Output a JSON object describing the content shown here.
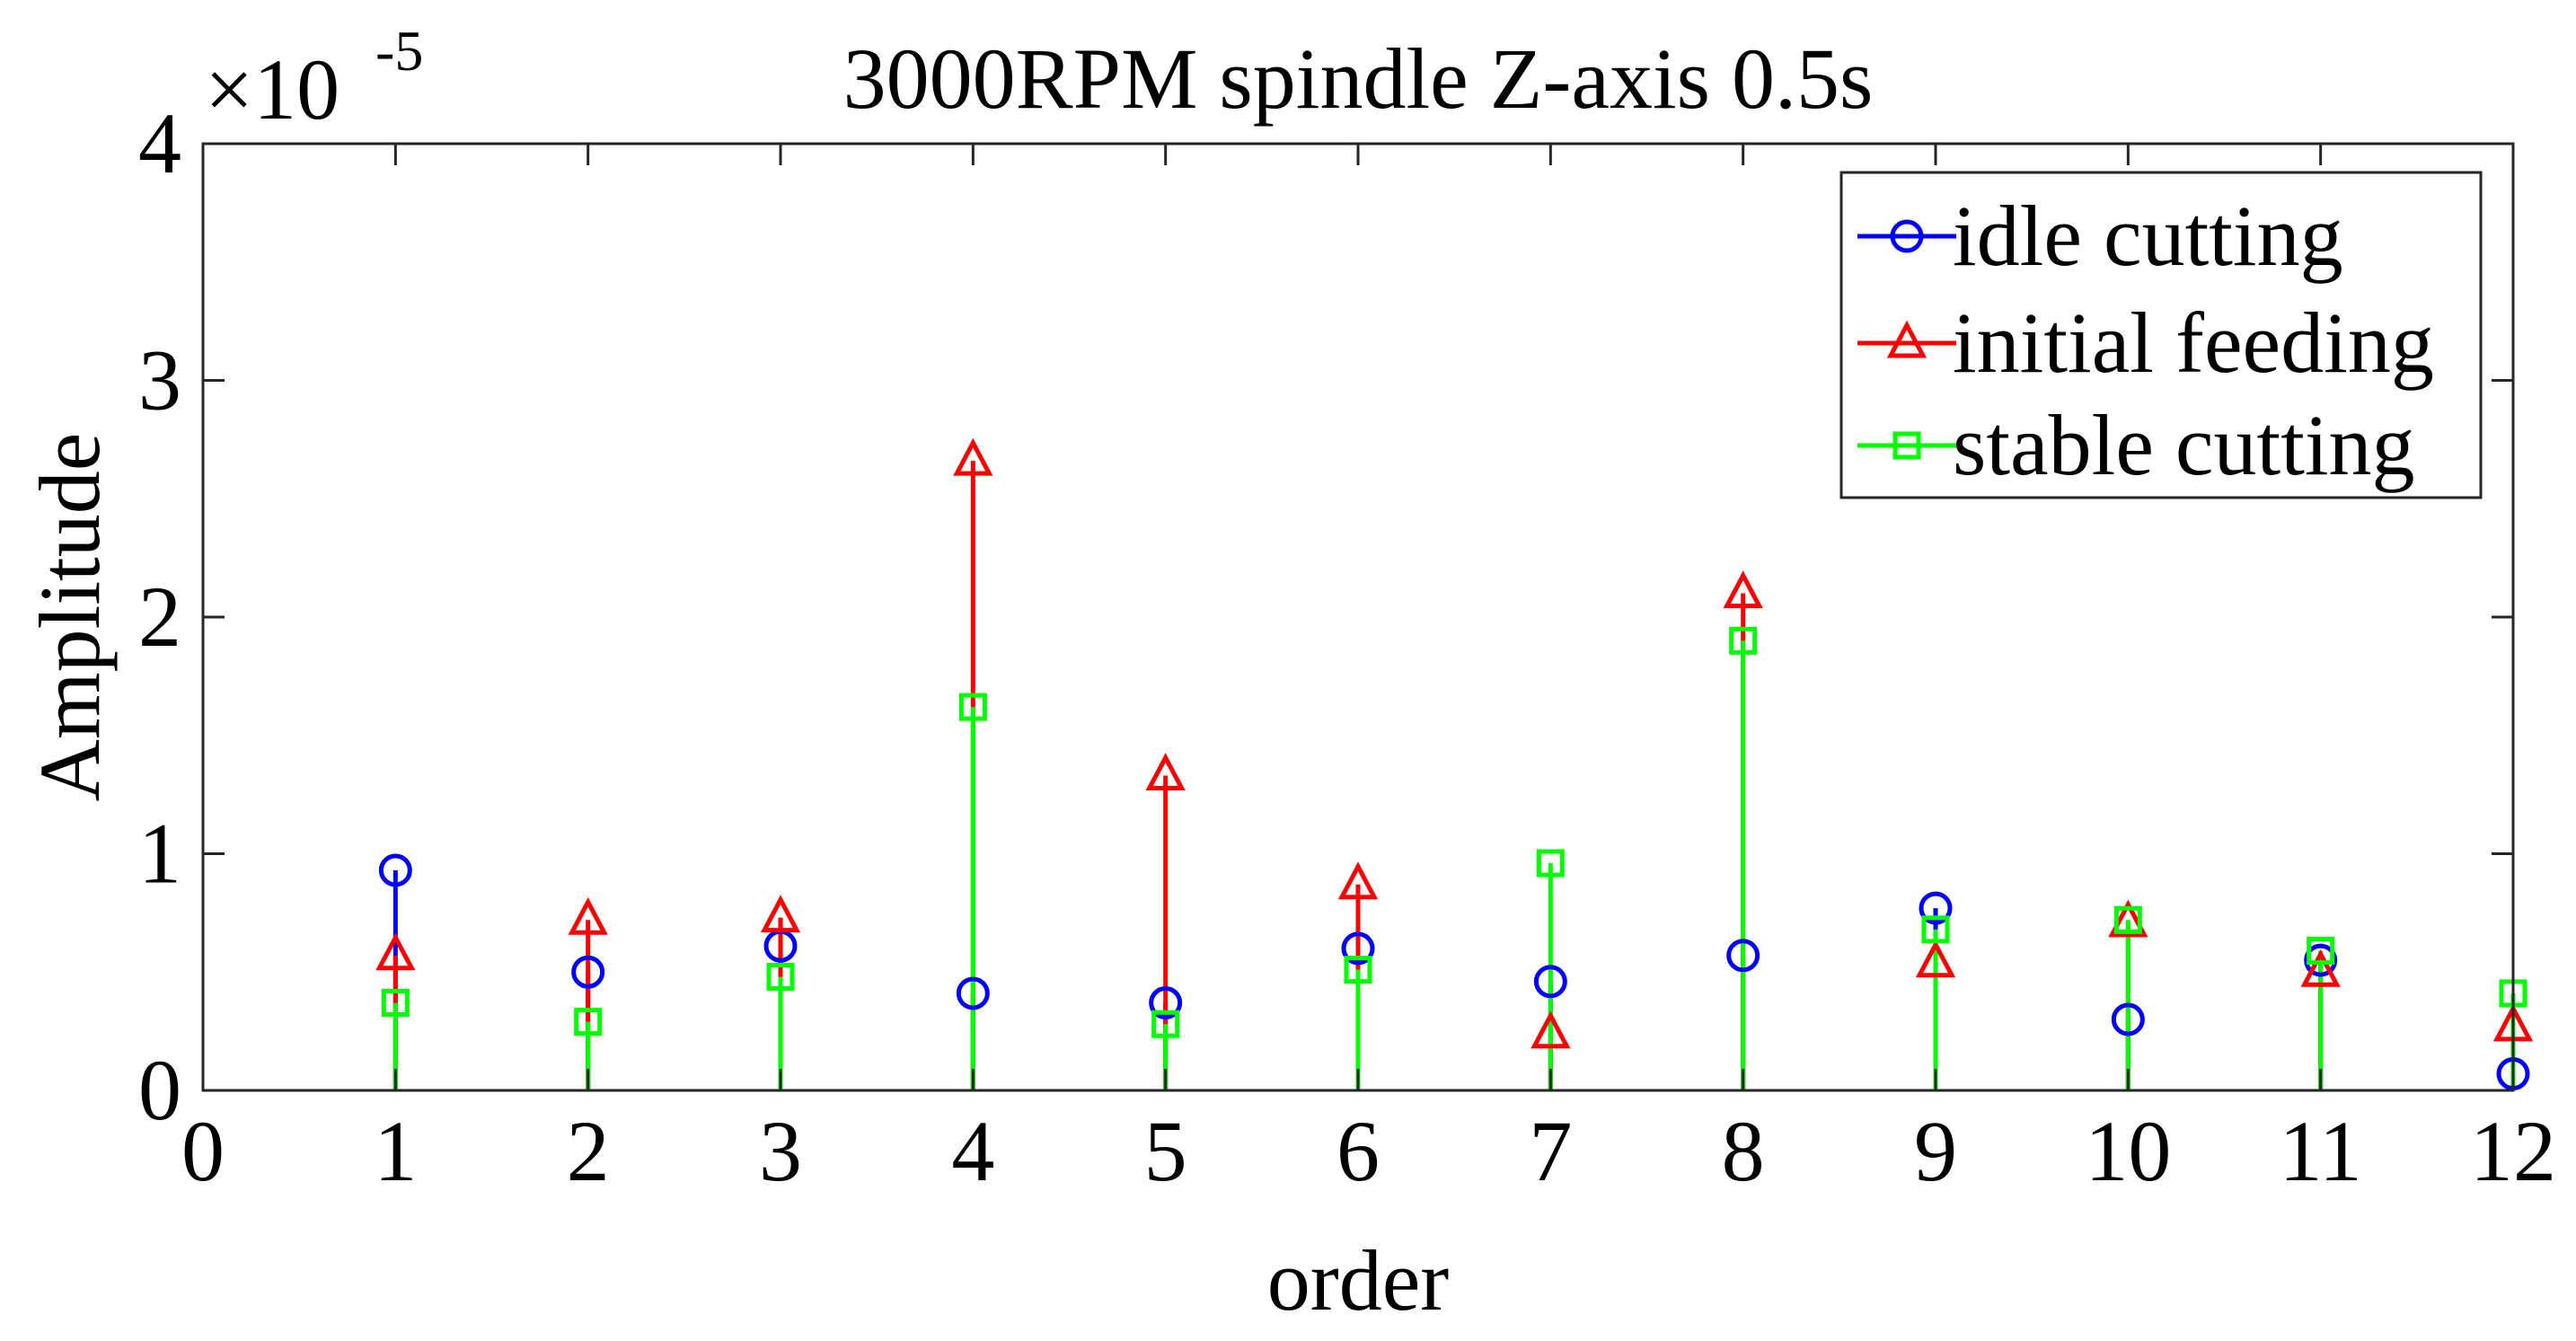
{
  "chart_data": {
    "type": "stem",
    "title": "3000RPM spindle Z-axis 0.5s",
    "xlabel": "order",
    "ylabel": "Amplitude",
    "y_multiplier": {
      "base": "×10",
      "exponent": "-5"
    },
    "xlim": [
      0,
      12
    ],
    "ylim": [
      0,
      4
    ],
    "x_ticks": [
      "0",
      "1",
      "2",
      "3",
      "4",
      "5",
      "6",
      "7",
      "8",
      "9",
      "10",
      "11",
      "12"
    ],
    "y_ticks": [
      "0",
      "1",
      "2",
      "3",
      "4"
    ],
    "legend_position": "top-right",
    "grid": false,
    "x": [
      1,
      2,
      3,
      4,
      5,
      6,
      7,
      8,
      9,
      10,
      11,
      12
    ],
    "series": [
      {
        "name": "idle cutting",
        "marker": "circle",
        "color": "#0000ff",
        "values": [
          0.93,
          0.5,
          0.61,
          0.41,
          0.37,
          0.6,
          0.46,
          0.57,
          0.77,
          0.3,
          0.55,
          0.07
        ]
      },
      {
        "name": "initial feeding",
        "marker": "triangle",
        "color": "#ff0000",
        "values": [
          0.57,
          0.72,
          0.73,
          2.66,
          1.33,
          0.87,
          0.24,
          2.1,
          0.54,
          0.71,
          0.5,
          0.27
        ]
      },
      {
        "name": "stable cutting",
        "marker": "square",
        "color": "#00ff00",
        "values": [
          0.37,
          0.29,
          0.48,
          1.62,
          0.28,
          0.51,
          0.96,
          1.9,
          0.68,
          0.72,
          0.59,
          0.41
        ]
      }
    ]
  }
}
